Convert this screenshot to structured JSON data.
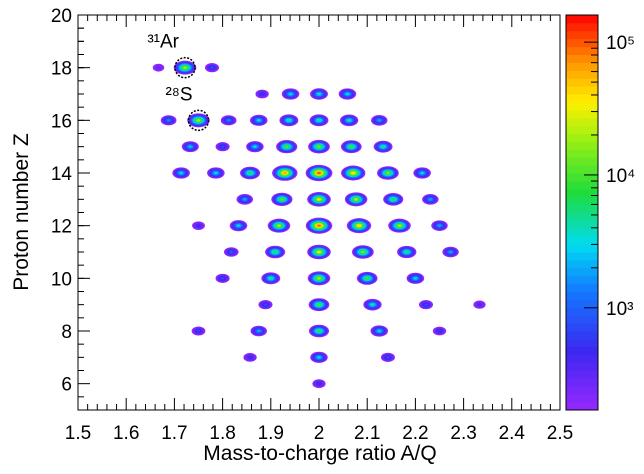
{
  "chart_data": {
    "type": "heatmap",
    "x_label": "Mass-to-charge ratio A/Q",
    "y_label": "Proton number Z",
    "xlim": [
      1.5,
      2.5
    ],
    "xticks": [
      1.5,
      1.6,
      1.7,
      1.8,
      1.9,
      2,
      2.1,
      2.2,
      2.3,
      2.4,
      2.5
    ],
    "ylim": [
      5,
      20
    ],
    "yticks": [
      6,
      8,
      10,
      12,
      14,
      16,
      18,
      20
    ],
    "colormap": "rainbow",
    "log_z": true,
    "zlim": [
      170,
      160000
    ],
    "zticks": [
      {
        "value": 1000,
        "label": "10³"
      },
      {
        "value": 10000,
        "label": "10⁴"
      },
      {
        "value": 100000,
        "label": "10⁵"
      }
    ],
    "x": [
      1.667,
      1.722,
      1.778,
      1.882,
      1.941,
      2.0,
      2.059,
      1.688,
      1.75,
      1.8125,
      1.875,
      1.9375,
      2.0,
      2.0625,
      2.125,
      1.733,
      1.8,
      1.867,
      1.933,
      2.0,
      2.067,
      2.133,
      1.714,
      1.786,
      1.857,
      1.929,
      2.0,
      2.071,
      2.143,
      2.214,
      1.846,
      1.923,
      2.0,
      2.077,
      2.154,
      2.231,
      1.75,
      1.833,
      1.917,
      2.0,
      2.083,
      2.167,
      2.25,
      1.818,
      1.909,
      2.0,
      2.091,
      2.182,
      2.273,
      1.8,
      1.9,
      2.0,
      2.1,
      2.2,
      1.889,
      2.0,
      2.111,
      2.222,
      2.333,
      1.75,
      1.875,
      2.0,
      2.125,
      2.25,
      1.857,
      2.0,
      2.143,
      2.0
    ],
    "y": [
      18,
      18,
      18,
      17,
      17,
      17,
      17,
      16,
      16,
      16,
      16,
      16,
      16,
      16,
      16,
      15,
      15,
      15,
      15,
      15,
      15,
      15,
      14,
      14,
      14,
      14,
      14,
      14,
      14,
      14,
      13,
      13,
      13,
      13,
      13,
      13,
      12,
      12,
      12,
      12,
      12,
      12,
      12,
      11,
      11,
      11,
      11,
      11,
      11,
      10,
      10,
      10,
      10,
      10,
      9,
      9,
      9,
      9,
      9,
      8,
      8,
      8,
      8,
      8,
      7,
      7,
      7,
      6
    ],
    "z": [
      300,
      20000,
      800,
      600,
      3000,
      3500,
      3000,
      1500,
      20000,
      1500,
      3000,
      5000,
      5000,
      4000,
      2000,
      2500,
      800,
      3000,
      12000,
      15000,
      10000,
      5000,
      3000,
      3000,
      8000,
      60000,
      100000,
      40000,
      15000,
      3000,
      2000,
      12000,
      30000,
      20000,
      8000,
      2000,
      500,
      3000,
      20000,
      90000,
      40000,
      20000,
      2000,
      1000,
      8000,
      30000,
      15000,
      6000,
      2000,
      800,
      5000,
      20000,
      10000,
      3000,
      800,
      10000,
      4000,
      800,
      400,
      700,
      2000,
      8000,
      3000,
      600,
      600,
      3000,
      800,
      600
    ],
    "annotations": [
      {
        "text": "³¹Ar",
        "x": 1.722,
        "y": 18
      },
      {
        "text": "²⁸S",
        "x": 1.75,
        "y": 16
      }
    ]
  }
}
